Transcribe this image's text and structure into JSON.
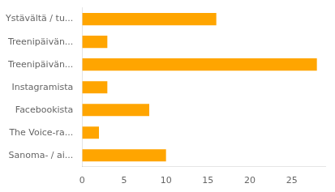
{
  "chart_data": {
    "type": "bar",
    "orientation": "horizontal",
    "categories": [
      "Sanoma- / ai...",
      "The Voice-ra...",
      "Facebookista",
      "Instagramista",
      "Treenipäivän...",
      "Treenipäivän...",
      "Ystävältä / tu..."
    ],
    "values": [
      10,
      2,
      8,
      3,
      28,
      3,
      16
    ],
    "color": "#FFA500",
    "xlim": [
      0,
      29
    ],
    "xticks": [
      0,
      5,
      10,
      15,
      20,
      25
    ],
    "grid": false
  }
}
